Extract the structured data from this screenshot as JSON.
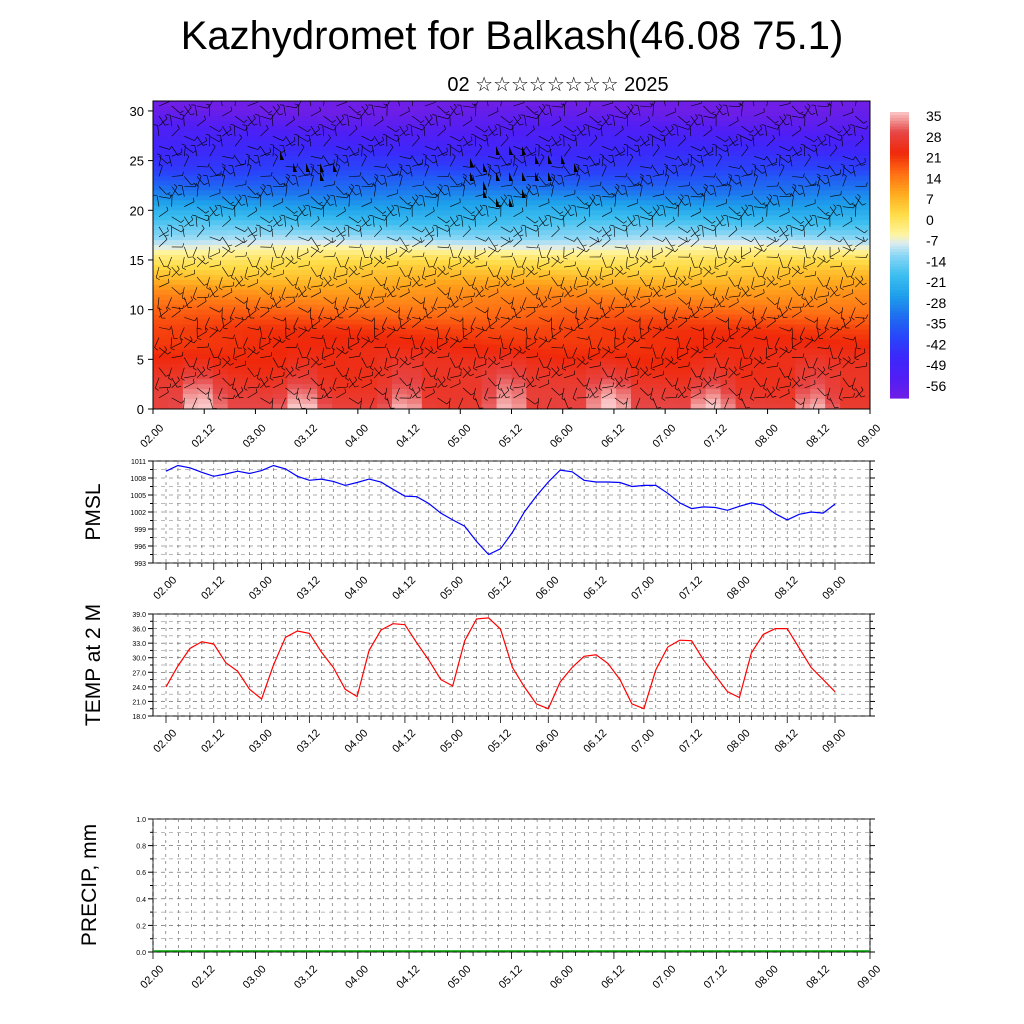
{
  "title": "Kazhydromet for Balkash(46.08 75.1)",
  "subtitle": "02 ☆☆☆☆☆☆☆☆ 2025",
  "colors": {
    "pmsl_line": "#0000ff",
    "temp_line": "#ff0000",
    "precip_baseline": "#00a000",
    "wind_barbs": "#000000"
  },
  "chart_data": [
    {
      "type": "heatmap",
      "name": "temperature-cross-section",
      "x_ticks": [
        "02.00",
        "02.12",
        "03.00",
        "03.12",
        "04.00",
        "04.12",
        "05.00",
        "05.12",
        "06.00",
        "06.12",
        "07.00",
        "07.12",
        "08.00",
        "08.12",
        "09.00"
      ],
      "y_ticks": [
        "0",
        "5",
        "10",
        "15",
        "20",
        "25",
        "30"
      ],
      "ylim": [
        0,
        31
      ],
      "colorbar": {
        "labels": [
          "35",
          "28",
          "21",
          "14",
          "7",
          "0",
          "-7",
          "-14",
          "-21",
          "-28",
          "-35",
          "-42",
          "-49",
          "-56"
        ],
        "range": [
          -63,
          35
        ]
      },
      "overlay": "wind barbs"
    },
    {
      "type": "line",
      "ylabel": "PMSL",
      "x_ticks": [
        "02.00",
        "02.12",
        "03.00",
        "03.12",
        "04.00",
        "04.12",
        "05.00",
        "05.12",
        "06.00",
        "06.12",
        "07.00",
        "07.12",
        "08.00",
        "08.12",
        "09.00"
      ],
      "y_ticks": [
        "1011",
        "1008",
        "1005",
        "1002",
        "999",
        "996",
        "993"
      ],
      "ylim": [
        993,
        1011
      ],
      "grid": true,
      "x": [
        0,
        1,
        2,
        3,
        4,
        5,
        6,
        7,
        8,
        9,
        10,
        11,
        12,
        13,
        14,
        15,
        16,
        17,
        18,
        19,
        20,
        21,
        22,
        23,
        24,
        25,
        26,
        27,
        28,
        29,
        30,
        31,
        32,
        33,
        34,
        35,
        36,
        37,
        38,
        39,
        40,
        41,
        42,
        43,
        44,
        45,
        46,
        47,
        48,
        49,
        50,
        51,
        52,
        53,
        54,
        55,
        56
      ],
      "values": [
        1009.2,
        1010.2,
        1009.8,
        1009.0,
        1008.3,
        1008.7,
        1009.2,
        1008.8,
        1009.3,
        1010.2,
        1009.6,
        1008.3,
        1007.6,
        1007.8,
        1007.4,
        1006.7,
        1007.2,
        1007.8,
        1007.3,
        1006.0,
        1004.8,
        1004.7,
        1003.5,
        1001.8,
        1000.6,
        999.5,
        996.8,
        994.5,
        995.5,
        998.4,
        1002.0,
        1004.8,
        1007.3,
        1009.4,
        1009.1,
        1007.6,
        1007.3,
        1007.3,
        1007.2,
        1006.5,
        1006.7,
        1006.7,
        1005.3,
        1003.6,
        1002.6,
        1002.9,
        1002.8,
        1002.3,
        1003.0,
        1003.6,
        1003.2,
        1001.7,
        1000.6,
        1001.6,
        1002.0,
        1001.8,
        1003.4
      ]
    },
    {
      "type": "line",
      "ylabel": "TEMP at 2 M",
      "x_ticks": [
        "02.00",
        "02.12",
        "03.00",
        "03.12",
        "04.00",
        "04.12",
        "05.00",
        "05.12",
        "06.00",
        "06.12",
        "07.00",
        "07.12",
        "08.00",
        "08.12",
        "09.00"
      ],
      "y_ticks": [
        "39.0",
        "36.0",
        "33.0",
        "30.0",
        "27.0",
        "24.0",
        "21.0",
        "18.0"
      ],
      "ylim": [
        18,
        39
      ],
      "grid": true,
      "x": [
        0,
        1,
        2,
        3,
        4,
        5,
        6,
        7,
        8,
        9,
        10,
        11,
        12,
        13,
        14,
        15,
        16,
        17,
        18,
        19,
        20,
        21,
        22,
        23,
        24,
        25,
        26,
        27,
        28,
        29,
        30,
        31,
        32,
        33,
        34,
        35,
        36,
        37,
        38,
        39,
        40,
        41,
        42,
        43,
        44,
        45,
        46,
        47,
        48,
        49,
        50,
        51,
        52,
        53,
        54,
        55,
        56
      ],
      "values": [
        24.0,
        28.3,
        31.9,
        33.3,
        32.8,
        29.0,
        27.2,
        23.5,
        21.5,
        28.5,
        34.2,
        35.5,
        35.0,
        31.2,
        28.0,
        23.5,
        22.0,
        31.5,
        35.7,
        37.0,
        36.8,
        33.0,
        29.5,
        25.5,
        24.2,
        33.5,
        38.0,
        38.2,
        35.9,
        28.0,
        24.0,
        20.5,
        19.5,
        25.0,
        28.0,
        30.3,
        30.6,
        28.8,
        25.5,
        20.5,
        19.5,
        27.5,
        32.2,
        33.6,
        33.5,
        29.5,
        26.3,
        23.0,
        21.8,
        31.0,
        34.8,
        36.0,
        36.0,
        32.0,
        28.0,
        25.5,
        23.0
      ]
    },
    {
      "type": "bar",
      "ylabel": "PRECIP, mm",
      "x_ticks": [
        "02.00",
        "02.12",
        "03.00",
        "03.12",
        "04.00",
        "04.12",
        "05.00",
        "05.12",
        "06.00",
        "06.12",
        "07.00",
        "07.12",
        "08.00",
        "08.12",
        "09.00"
      ],
      "y_ticks": [
        "1.0",
        "0.8",
        "0.6",
        "0.4",
        "0.2",
        "0.0"
      ],
      "ylim": [
        0,
        1
      ],
      "grid": true,
      "values": []
    }
  ]
}
